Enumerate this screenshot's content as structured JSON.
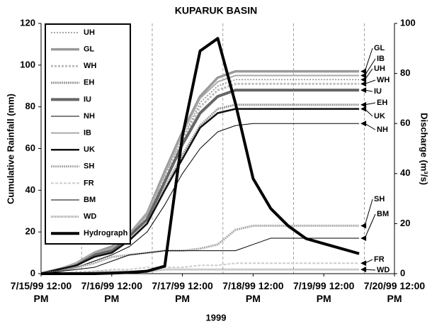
{
  "chart_data": {
    "type": "line",
    "title": "KUPARUK BASIN",
    "xlabel": "1999",
    "ylabel": "Cumulative Rainfall (mm)",
    "y2label": "Discharge (m³/s)",
    "xlim": [
      "1999-07-15T12:00",
      "1999-07-20T12:00"
    ],
    "xticks": [
      {
        "value": "1999-07-15T12:00",
        "label": "7/15/99 12:00\nPM"
      },
      {
        "value": "1999-07-16T12:00",
        "label": "7/16/99 12:00\nPM"
      },
      {
        "value": "1999-07-17T12:00",
        "label": "7/17/99 12:00\nPM"
      },
      {
        "value": "1999-07-18T12:00",
        "label": "7/18/99 12:00\nPM"
      },
      {
        "value": "1999-07-19T12:00",
        "label": "7/19/99 12:00\nPM"
      },
      {
        "value": "1999-07-20T12:00",
        "label": "7/20/99 12:00\nPM"
      }
    ],
    "xminorticks": [
      "1999-07-16T01:45",
      "1999-07-17T01:45",
      "1999-07-18T01:45",
      "1999-07-19T01:45",
      "1999-07-20T01:45"
    ],
    "ylim": [
      0,
      120
    ],
    "yticks": [
      0,
      20,
      40,
      60,
      80,
      100,
      120
    ],
    "y2lim": [
      0,
      100
    ],
    "y2ticks": [
      0,
      20,
      40,
      60,
      80,
      100
    ],
    "x": [
      "1999-07-15T12:00",
      "1999-07-15T18:00",
      "1999-07-16T00:00",
      "1999-07-16T06:00",
      "1999-07-16T12:00",
      "1999-07-16T18:00",
      "1999-07-17T00:00",
      "1999-07-17T06:00",
      "1999-07-17T12:00",
      "1999-07-17T18:00",
      "1999-07-18T00:00",
      "1999-07-18T06:00",
      "1999-07-18T12:00",
      "1999-07-18T18:00",
      "1999-07-19T00:00",
      "1999-07-19T06:00",
      "1999-07-19T12:00",
      "1999-07-19T18:00",
      "1999-07-20T00:00"
    ],
    "series": [
      {
        "name": "UH",
        "color": "#888",
        "width": 1.5,
        "dash": "2 2",
        "values": [
          0,
          2,
          5,
          9,
          12,
          19,
          28,
          47,
          65,
          82,
          90,
          93,
          93,
          93,
          93,
          93,
          93,
          93,
          93
        ]
      },
      {
        "name": "GL",
        "color": "#999",
        "width": 3.5,
        "values": [
          0,
          2,
          5,
          10,
          13,
          19,
          29,
          49,
          68,
          85,
          94,
          97,
          97,
          97,
          97,
          97,
          97,
          97,
          97
        ]
      },
      {
        "name": "WH",
        "color": "#bbb",
        "width": 3,
        "dash": "3 2",
        "values": [
          0,
          2,
          5,
          9,
          12,
          18,
          27,
          46,
          64,
          80,
          88,
          91,
          91,
          91,
          91,
          91,
          91,
          91,
          91
        ]
      },
      {
        "name": "EH",
        "color": "#999",
        "width": 3,
        "dash": "2 1",
        "values": [
          0,
          2,
          4,
          8,
          11,
          16,
          24,
          41,
          57,
          71,
          79,
          81,
          81,
          81,
          81,
          81,
          81,
          81,
          81
        ]
      },
      {
        "name": "IU",
        "color": "#666",
        "width": 4,
        "values": [
          0,
          2,
          4,
          9,
          11,
          18,
          26,
          44,
          62,
          77,
          85,
          88,
          88,
          88,
          88,
          88,
          88,
          88,
          88
        ]
      },
      {
        "name": "NH",
        "color": "#000",
        "width": 1,
        "values": [
          0,
          1,
          3,
          6,
          9,
          13,
          20,
          33,
          48,
          60,
          68,
          71,
          72,
          72,
          72,
          72,
          72,
          72,
          72
        ]
      },
      {
        "name": "IB",
        "color": "#aaa",
        "width": 2,
        "values": [
          0,
          2,
          5,
          10,
          12,
          19,
          29,
          48,
          67,
          84,
          92,
          95,
          95,
          95,
          95,
          95,
          95,
          95,
          95
        ]
      },
      {
        "name": "UK",
        "color": "#111",
        "width": 2.5,
        "values": [
          0,
          2,
          4,
          8,
          10,
          16,
          24,
          40,
          55,
          70,
          77,
          79,
          79,
          79,
          79,
          79,
          79,
          79,
          79
        ]
      },
      {
        "name": "SH",
        "color": "#aaa",
        "width": 3,
        "dash": "2 1",
        "values": [
          0,
          1,
          3,
          5,
          8,
          9,
          10,
          11,
          11,
          12,
          14,
          21,
          23,
          23,
          23,
          23,
          23,
          23,
          23
        ]
      },
      {
        "name": "FR",
        "color": "#ccc",
        "width": 2,
        "dash": "4 2",
        "values": [
          0,
          0,
          1,
          1,
          2,
          2,
          3,
          3,
          3,
          4,
          4,
          5,
          5,
          5,
          5,
          5,
          5,
          5,
          5
        ]
      },
      {
        "name": "BM",
        "color": "#000",
        "width": 1,
        "values": [
          0,
          1,
          2,
          3,
          6,
          9,
          10,
          11,
          11,
          11,
          11,
          11,
          14,
          17,
          17,
          17,
          17,
          17,
          17
        ]
      },
      {
        "name": "WD",
        "color": "#999",
        "width": 3,
        "dash": "1 1",
        "values": [
          0,
          0,
          0,
          1,
          1,
          1,
          1,
          2,
          2,
          2,
          2,
          2,
          2,
          2,
          2,
          2,
          2,
          2,
          2
        ]
      },
      {
        "name": "Hydrograph",
        "color": "#000",
        "width": 4,
        "axis": "y2",
        "values": [
          0,
          0,
          0,
          0,
          0.2,
          0.5,
          1,
          3,
          55,
          89,
          94,
          68,
          38,
          26,
          19,
          14,
          12,
          10,
          8
        ]
      }
    ],
    "annotations": [
      "GL",
      "IB",
      "UH",
      "WH",
      "IU",
      "EH",
      "UK",
      "NH",
      "SH",
      "BM",
      "FR",
      "WD"
    ]
  }
}
